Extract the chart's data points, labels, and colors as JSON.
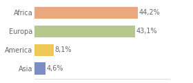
{
  "categories": [
    "Africa",
    "Europa",
    "America",
    "Asia"
  ],
  "values": [
    44.2,
    43.1,
    8.1,
    4.6
  ],
  "labels": [
    "44,2%",
    "43,1%",
    "8,1%",
    "4,6%"
  ],
  "bar_colors": [
    "#e8a97e",
    "#b5c98e",
    "#f0c855",
    "#7b8ec8"
  ],
  "background_color": "#ffffff",
  "xlim": [
    0,
    58
  ],
  "bar_height": 0.65,
  "label_fontsize": 7.0,
  "tick_fontsize": 7.0,
  "text_color": "#666666"
}
